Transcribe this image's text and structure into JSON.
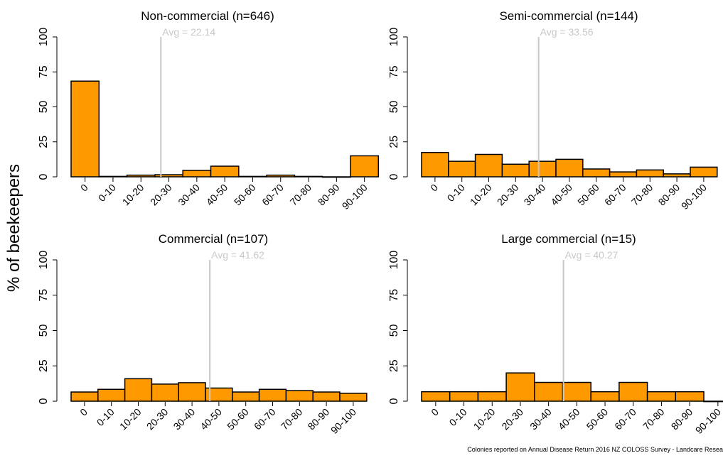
{
  "figure": {
    "ylabel": "% of beekeepers",
    "footnote": "Colonies reported on Annual Disease Return 2016 NZ COLOSS Survey - Landcare Resea",
    "bar_color": "#ff9900",
    "avg_line_color": "#c8c8c8"
  },
  "chart_data": [
    {
      "type": "bar",
      "title": "Non-commercial (n=646)",
      "categories": [
        "0",
        "0-10",
        "10-20",
        "20-30",
        "30-40",
        "40-50",
        "50-60",
        "60-70",
        "70-80",
        "80-90",
        "90-100"
      ],
      "values": [
        68.4,
        0.3,
        1.2,
        1.5,
        4.6,
        7.6,
        0.3,
        1.2,
        0.3,
        0,
        15.0
      ],
      "yticks": [
        0,
        25,
        50,
        75,
        100
      ],
      "ylim": [
        0,
        100
      ],
      "avg_label": "Avg = 22.14",
      "avg_value": 22.14
    },
    {
      "type": "bar",
      "title": "Semi-commercial (n=144)",
      "categories": [
        "0",
        "0-10",
        "10-20",
        "20-30",
        "30-40",
        "40-50",
        "50-60",
        "60-70",
        "70-80",
        "80-90",
        "90-100"
      ],
      "values": [
        17.4,
        11.1,
        16.0,
        9.0,
        11.1,
        12.5,
        5.6,
        3.5,
        4.9,
        2.1,
        6.9
      ],
      "yticks": [
        0,
        25,
        50,
        75,
        100
      ],
      "ylim": [
        0,
        100
      ],
      "avg_label": "Avg = 33.56",
      "avg_value": 33.56
    },
    {
      "type": "bar",
      "title": "Commercial (n=107)",
      "categories": [
        "0",
        "0-10",
        "10-20",
        "20-30",
        "30-40",
        "40-50",
        "50-60",
        "60-70",
        "70-80",
        "80-90",
        "90-100"
      ],
      "values": [
        6.5,
        8.4,
        15.9,
        12.1,
        13.1,
        9.3,
        6.5,
        8.4,
        7.5,
        6.5,
        5.6
      ],
      "yticks": [
        0,
        25,
        50,
        75,
        100
      ],
      "ylim": [
        0,
        100
      ],
      "avg_label": "Avg = 41.62",
      "avg_value": 41.62
    },
    {
      "type": "bar",
      "title": "Large commercial (n=15)",
      "categories": [
        "0",
        "0-10",
        "10-20",
        "20-30",
        "30-40",
        "40-50",
        "50-60",
        "60-70",
        "70-80",
        "80-90",
        "90-100"
      ],
      "values": [
        6.7,
        6.7,
        6.7,
        20.0,
        13.3,
        13.3,
        6.7,
        13.3,
        6.7,
        6.7,
        0
      ],
      "yticks": [
        0,
        25,
        50,
        75,
        100
      ],
      "ylim": [
        0,
        100
      ],
      "avg_label": "Avg = 40.27",
      "avg_value": 40.27
    }
  ]
}
